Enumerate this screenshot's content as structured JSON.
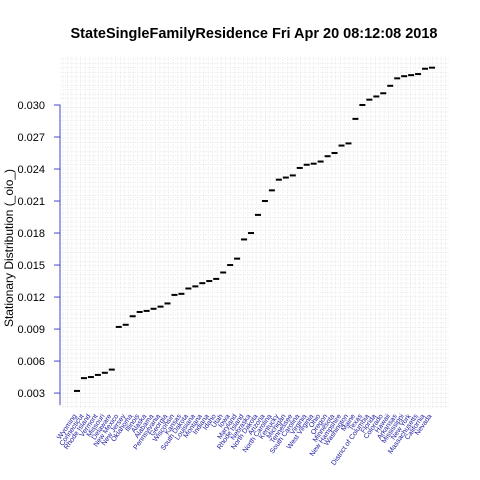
{
  "chart_data": {
    "type": "scatter",
    "title": "StateSingleFamilyResidence  Fri Apr 20 08:12:08 2018",
    "ylabel": "Stationary Distribution (_oio_)",
    "xlabel": "",
    "ylim": [
      0.0016,
      0.0345
    ],
    "yticks": [
      "0.003",
      "0.006",
      "0.009",
      "0.012",
      "0.015",
      "0.018",
      "0.021",
      "0.024",
      "0.027",
      "0.030"
    ],
    "grid": true,
    "categories": [
      "Wyoming",
      "Connecticut",
      "Rhode Island",
      "Vermont",
      "Missouri",
      "Delaware",
      "New Mexico",
      "New Jersey",
      "Oklahoma",
      "Illinois",
      "Alaska",
      "Alabama",
      "Pennsylvania",
      "Georgia",
      "Wisconsin",
      "Kansas",
      "South Dakota",
      "Louisiana",
      "Montana",
      "Indiana",
      "Idaho",
      "Utah",
      "Iowa",
      "Maryland",
      "Rhode Island",
      "Nebraska",
      "North Dakota",
      "Arizona",
      "North Carolina",
      "Kentucky",
      "Michigan",
      "Tennessee",
      "South Carolina",
      "Virginia",
      "West Virginia",
      "Ohio",
      "Oregon",
      "Minnesota",
      "New Hampshire",
      "Washington",
      "Maine",
      "Texas",
      "District of Columbia",
      "Florida",
      "Colorado",
      "Hawaii",
      "Arkansas",
      "Mississippi",
      "New York",
      "Massachusetts",
      "California",
      "Nevada"
    ],
    "values": [
      0.0032,
      0.0044,
      0.0045,
      0.0047,
      0.0049,
      0.0052,
      0.0092,
      0.0094,
      0.0102,
      0.0106,
      0.0107,
      0.0109,
      0.0111,
      0.0114,
      0.0122,
      0.0123,
      0.0128,
      0.013,
      0.0133,
      0.0135,
      0.0137,
      0.0143,
      0.015,
      0.0156,
      0.0174,
      0.018,
      0.0197,
      0.021,
      0.022,
      0.023,
      0.0232,
      0.0234,
      0.0241,
      0.0244,
      0.0245,
      0.0247,
      0.0252,
      0.0255,
      0.0262,
      0.0264,
      0.0287,
      0.03,
      0.0305,
      0.0308,
      0.0311,
      0.0318,
      0.0325,
      0.0327,
      0.0328,
      0.0329,
      0.0334,
      0.0335
    ]
  }
}
